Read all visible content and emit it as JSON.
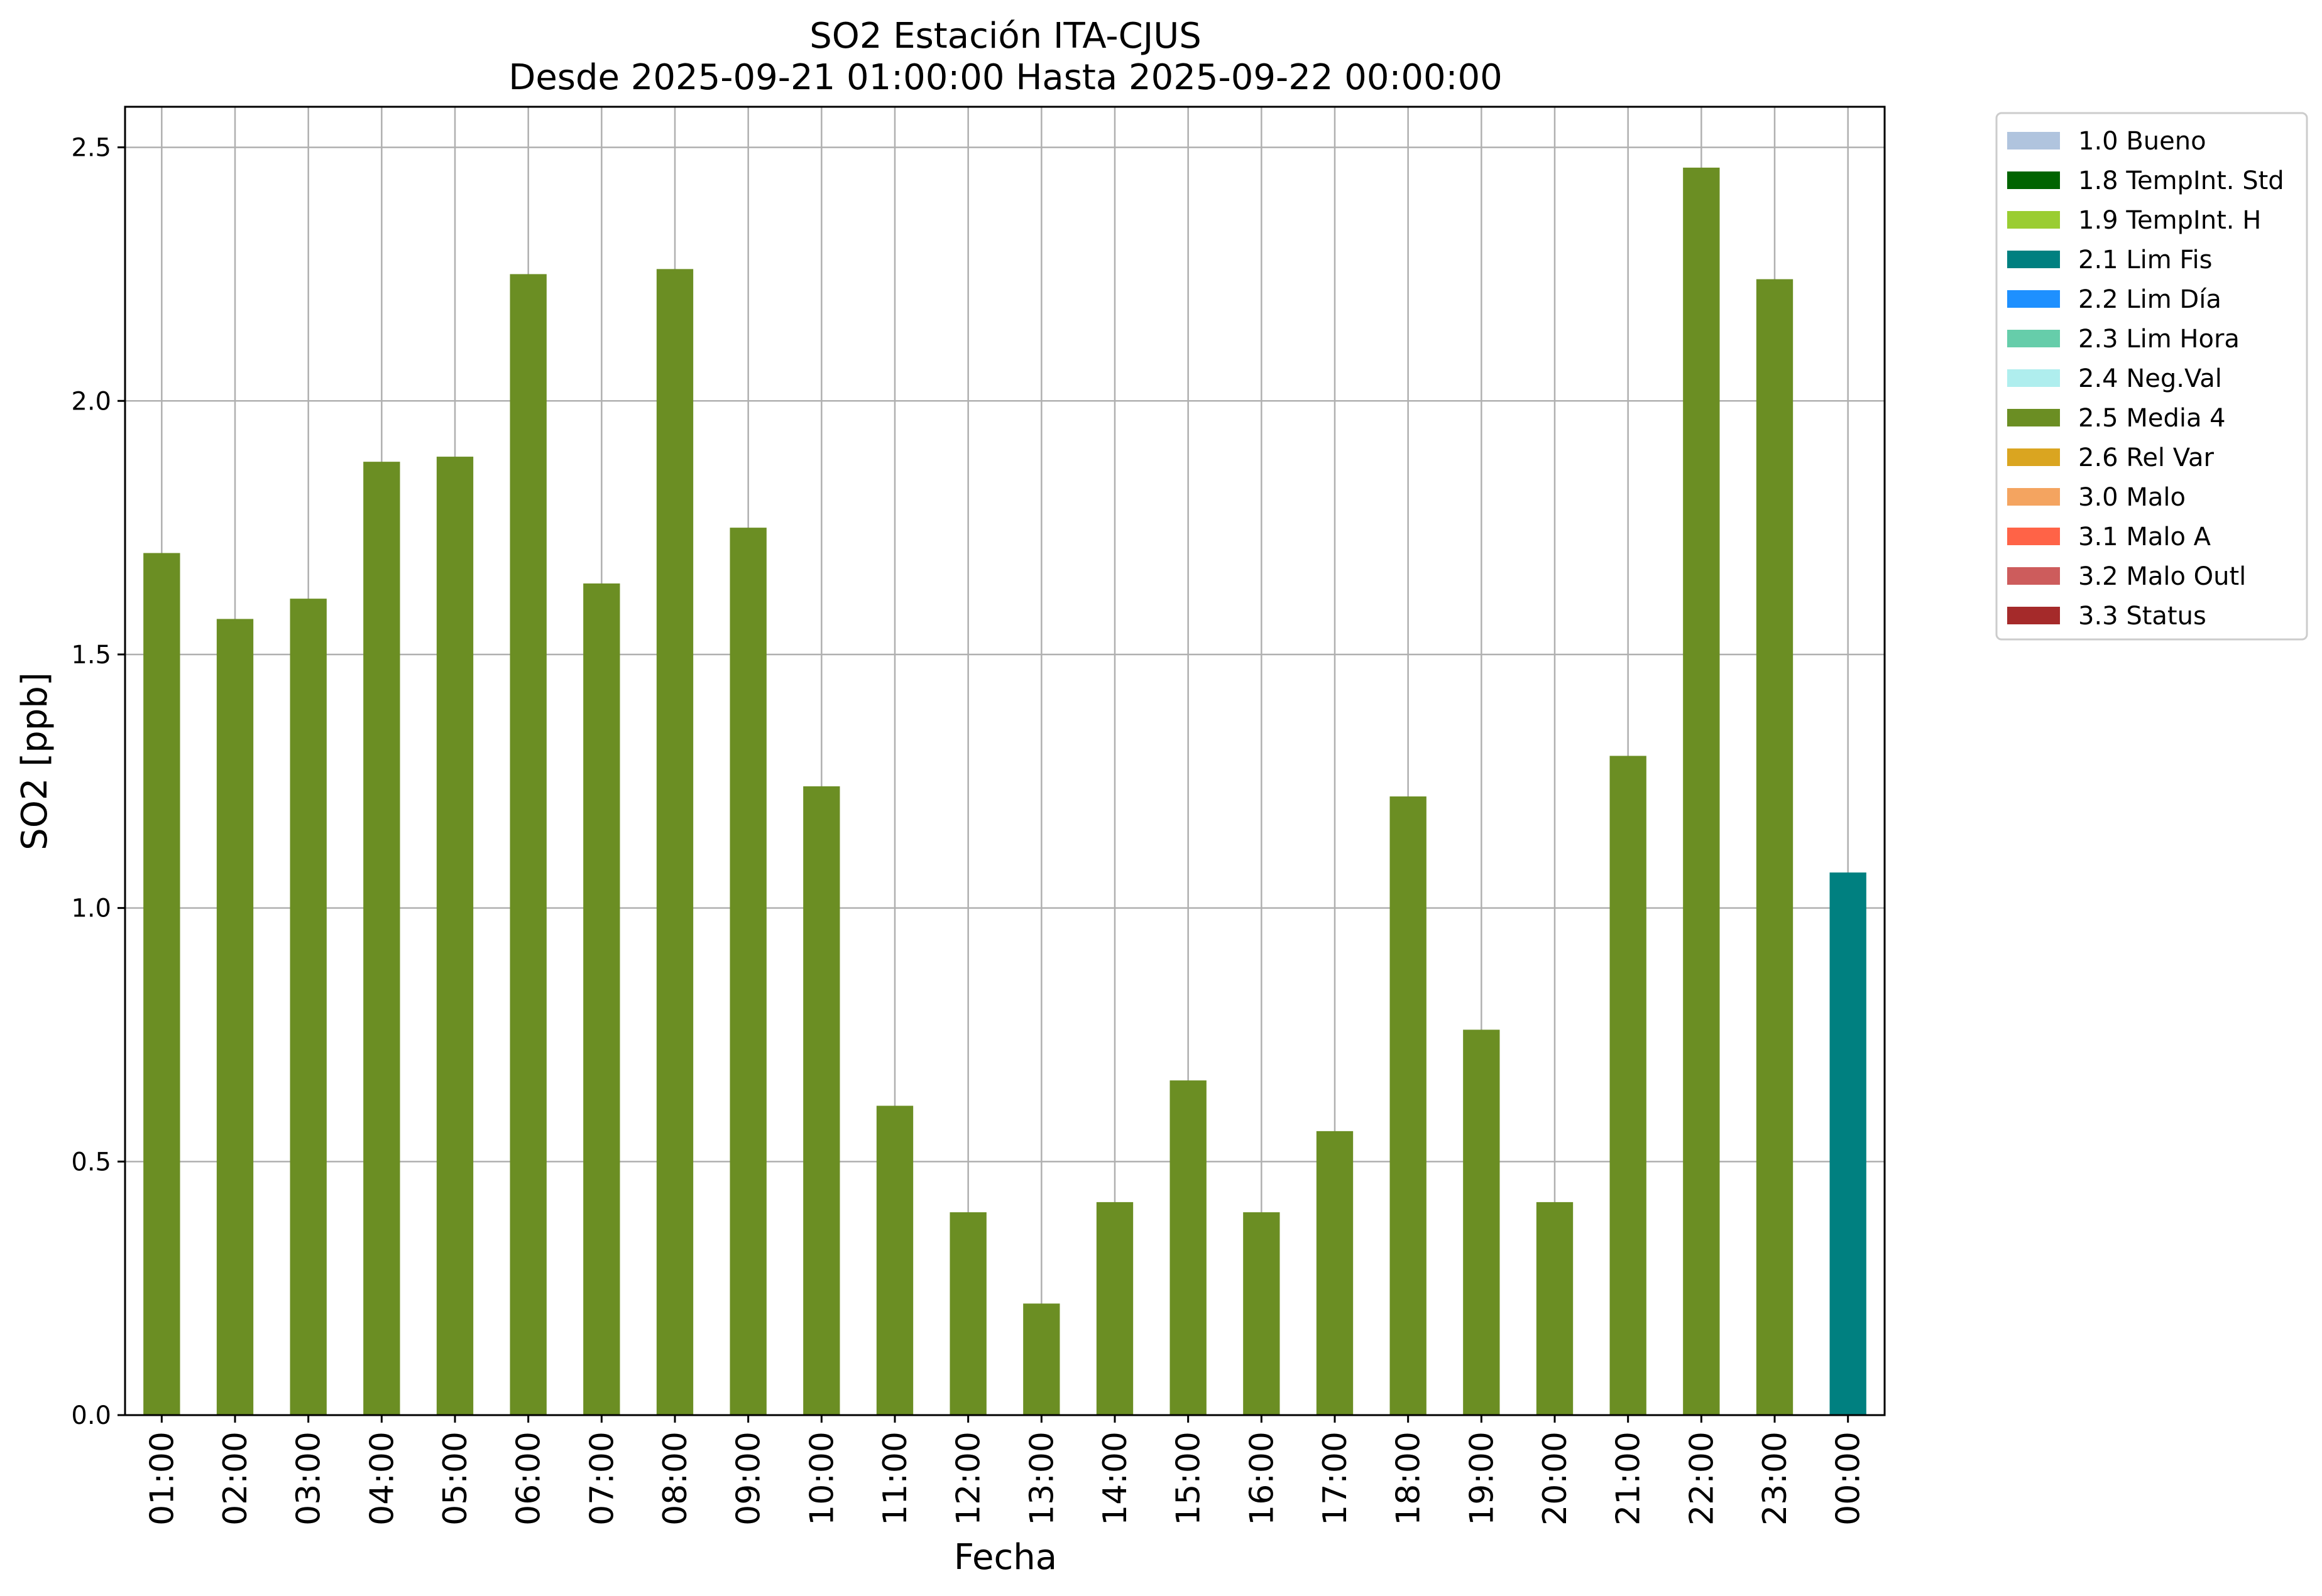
{
  "chart_data": {
    "type": "bar",
    "title": [
      "SO2 Estación ITA-CJUS",
      "Desde 2025-09-21 01:00:00 Hasta 2025-09-22 00:00:00"
    ],
    "xlabel": "Fecha",
    "ylabel": "SO2 [ppb]",
    "ylim": [
      0,
      2.58
    ],
    "yticks": [
      0.0,
      0.5,
      1.0,
      1.5,
      2.0,
      2.5
    ],
    "ytick_labels": [
      "0.0",
      "0.5",
      "1.0",
      "1.5",
      "2.0",
      "2.5"
    ],
    "grid": true,
    "legend_position": "outside-top-right",
    "categories": [
      "01:00",
      "02:00",
      "03:00",
      "04:00",
      "05:00",
      "06:00",
      "07:00",
      "08:00",
      "09:00",
      "10:00",
      "11:00",
      "12:00",
      "13:00",
      "14:00",
      "15:00",
      "16:00",
      "17:00",
      "18:00",
      "19:00",
      "20:00",
      "21:00",
      "22:00",
      "23:00",
      "00:00"
    ],
    "values": [
      1.7,
      1.57,
      1.61,
      1.88,
      1.89,
      2.25,
      1.64,
      2.26,
      1.75,
      1.24,
      0.61,
      0.4,
      0.22,
      0.42,
      0.66,
      0.4,
      0.56,
      1.22,
      0.76,
      0.42,
      1.3,
      2.46,
      2.24,
      1.07
    ],
    "flags": [
      "2.5 Media 4",
      "2.5 Media 4",
      "2.5 Media 4",
      "2.5 Media 4",
      "2.5 Media 4",
      "2.5 Media 4",
      "2.5 Media 4",
      "2.5 Media 4",
      "2.5 Media 4",
      "2.5 Media 4",
      "2.5 Media 4",
      "2.5 Media 4",
      "2.5 Media 4",
      "2.5 Media 4",
      "2.5 Media 4",
      "2.5 Media 4",
      "2.5 Media 4",
      "2.5 Media 4",
      "2.5 Media 4",
      "2.5 Media 4",
      "2.5 Media 4",
      "2.5 Media 4",
      "2.5 Media 4",
      "2.1 Lim Fis"
    ],
    "legend": [
      {
        "label": "1.0 Bueno",
        "color": "#b0c4de"
      },
      {
        "label": "1.8 TempInt. Std",
        "color": "#006400"
      },
      {
        "label": "1.9 TempInt. H",
        "color": "#9acd32"
      },
      {
        "label": "2.1 Lim Fis",
        "color": "#008080"
      },
      {
        "label": "2.2 Lim Día",
        "color": "#1e90ff"
      },
      {
        "label": "2.3 Lim Hora",
        "color": "#66cdaa"
      },
      {
        "label": "2.4 Neg.Val",
        "color": "#afeeee"
      },
      {
        "label": "2.5 Media 4",
        "color": "#6b8e23"
      },
      {
        "label": "2.6 Rel Var",
        "color": "#daa520"
      },
      {
        "label": "3.0 Malo",
        "color": "#f4a460"
      },
      {
        "label": "3.1 Malo A",
        "color": "#ff6347"
      },
      {
        "label": "3.2 Malo Outl",
        "color": "#cd5c5c"
      },
      {
        "label": "3.3 Status",
        "color": "#a52a2a"
      }
    ]
  }
}
